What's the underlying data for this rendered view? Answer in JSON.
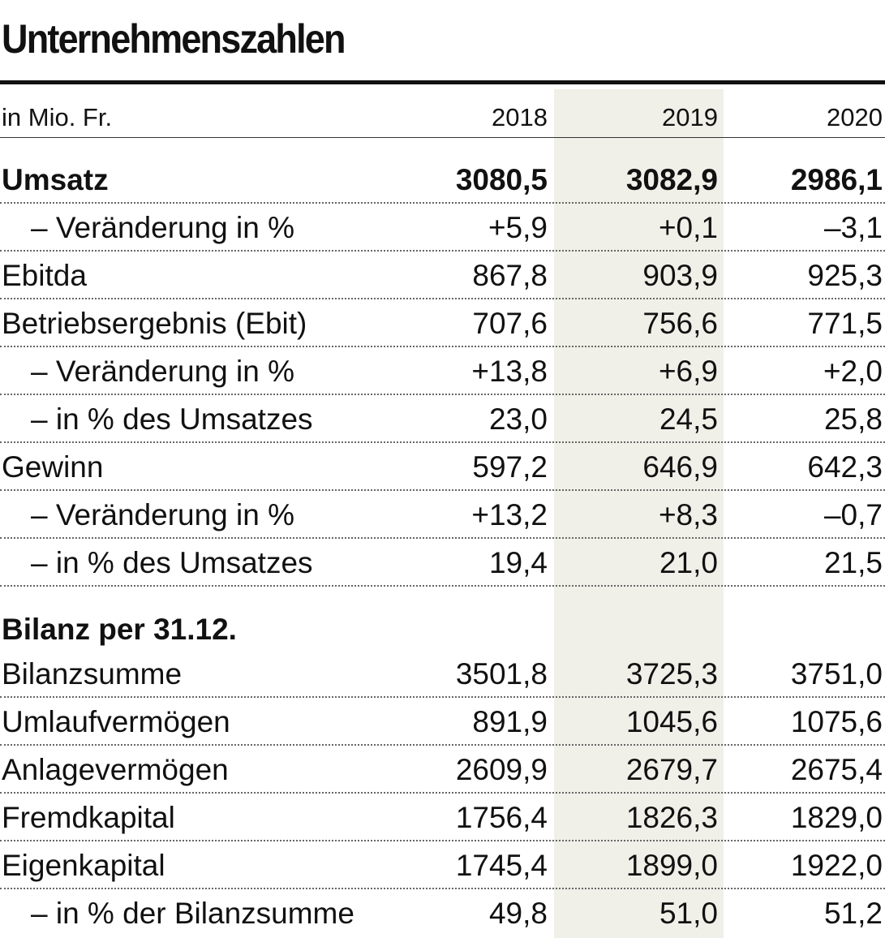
{
  "title": "Unternehmenszahlen",
  "table": {
    "header": [
      "in Mio. Fr.",
      "2018",
      "2019",
      "2020"
    ],
    "rows": [
      [
        "Umsatz",
        "3080,5",
        "3082,9",
        "2986,1"
      ],
      [
        "– Veränderung in %",
        "+5,9",
        "+0,1",
        "–3,1"
      ],
      [
        "Ebitda",
        "867,8",
        "903,9",
        "925,3"
      ],
      [
        "Betriebsergebnis (Ebit)",
        "707,6",
        "756,6",
        "771,5"
      ],
      [
        "– Veränderung in %",
        "+13,8",
        "+6,9",
        "+2,0"
      ],
      [
        "– in % des Umsatzes",
        "23,0",
        "24,5",
        "25,8"
      ],
      [
        "Gewinn",
        "597,2",
        "646,9",
        "642,3"
      ],
      [
        "– Veränderung in %",
        "+13,2",
        "+8,3",
        "–0,7"
      ],
      [
        "– in % des Umsatzes",
        "19,4",
        "21,0",
        "21,5"
      ]
    ],
    "section": "Bilanz per 31.12.",
    "balance_rows": [
      [
        "Bilanzsumme",
        "3501,8",
        "3725,3",
        "3751,0"
      ],
      [
        "Umlaufvermögen",
        "891,9",
        "1045,6",
        "1075,6"
      ],
      [
        "Anlagevermögen",
        "2609,9",
        "2679,7",
        "2675,4"
      ],
      [
        "Fremdkapital",
        "1756,4",
        "1826,3",
        "1829,0"
      ],
      [
        "Eigenkapital",
        "1745,4",
        "1899,0",
        "1922,0"
      ],
      [
        "– in % der Bilanzsumme",
        "49,8",
        "51,0",
        "51,2"
      ]
    ]
  }
}
